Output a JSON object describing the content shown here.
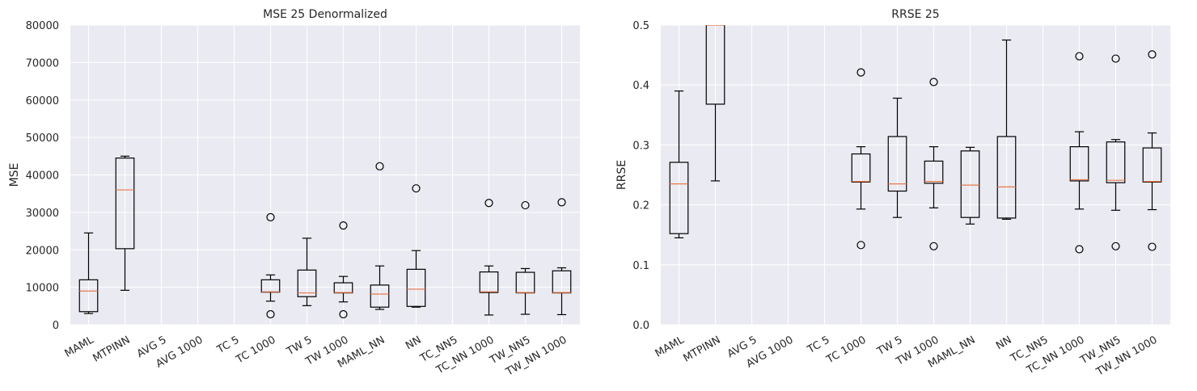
{
  "chart_data": [
    {
      "type": "box",
      "title": "MSE 25 Denormalized",
      "xlabel": "",
      "ylabel": "MSE",
      "ylim": [
        0,
        80000
      ],
      "yticks": [
        0,
        10000,
        20000,
        30000,
        40000,
        50000,
        60000,
        70000,
        80000
      ],
      "ytick_labels": [
        "0",
        "10000",
        "20000",
        "30000",
        "40000",
        "50000",
        "60000",
        "70000",
        "80000"
      ],
      "grid": true,
      "categories": [
        "MAML",
        "MTPINN",
        "AVG 5",
        "AVG 1000",
        "TC 5",
        "TC 1000",
        "TW 5",
        "TW 1000",
        "MAML_NN",
        "NN",
        "TC_NN5",
        "TC_NN 1000",
        "TW_NN5",
        "TW_NN 1000"
      ],
      "boxes": [
        {
          "whislo": 3000,
          "q1": 3500,
          "med": 9000,
          "q3": 12000,
          "whishi": 24500,
          "fliers": []
        },
        {
          "whislo": 9200,
          "q1": 20300,
          "med": 36000,
          "q3": 44500,
          "whishi": 45000,
          "fliers": []
        },
        null,
        null,
        null,
        {
          "whislo": 6300,
          "q1": 8700,
          "med": 8800,
          "q3": 12000,
          "whishi": 13300,
          "fliers": [
            28700,
            2800
          ]
        },
        {
          "whislo": 5100,
          "q1": 7500,
          "med": 8500,
          "q3": 14600,
          "whishi": 23100,
          "fliers": []
        },
        {
          "whislo": 6100,
          "q1": 8500,
          "med": 8600,
          "q3": 11200,
          "whishi": 12900,
          "fliers": [
            26500,
            2800
          ]
        },
        {
          "whislo": 4100,
          "q1": 4700,
          "med": 8200,
          "q3": 10600,
          "whishi": 15700,
          "fliers": [
            42300
          ]
        },
        {
          "whislo": 4700,
          "q1": 4900,
          "med": 9500,
          "q3": 14800,
          "whishi": 19800,
          "fliers": [
            36400
          ]
        },
        null,
        {
          "whislo": 2600,
          "q1": 8600,
          "med": 8800,
          "q3": 14100,
          "whishi": 15700,
          "fliers": [
            32500
          ]
        },
        {
          "whislo": 2800,
          "q1": 8500,
          "med": 8600,
          "q3": 14000,
          "whishi": 15000,
          "fliers": [
            31900
          ]
        },
        {
          "whislo": 2700,
          "q1": 8500,
          "med": 8600,
          "q3": 14400,
          "whishi": 15200,
          "fliers": [
            32700
          ]
        }
      ]
    },
    {
      "type": "box",
      "title": "RRSE 25",
      "xlabel": "",
      "ylabel": "RRSE",
      "ylim": [
        0,
        0.5
      ],
      "yticks": [
        0,
        0.1,
        0.2,
        0.3,
        0.4,
        0.5
      ],
      "ytick_labels": [
        "0.0",
        "0.1",
        "0.2",
        "0.3",
        "0.4",
        "0.5"
      ],
      "grid": true,
      "categories": [
        "MAML",
        "MTPINN",
        "AVG 5",
        "AVG 1000",
        "TC 5",
        "TC 1000",
        "TW 5",
        "TW 1000",
        "MAML_NN",
        "NN",
        "TC_NN5",
        "TC_NN 1000",
        "TW_NN5",
        "TW_NN 1000"
      ],
      "boxes": [
        {
          "whislo": 0.145,
          "q1": 0.152,
          "med": 0.235,
          "q3": 0.271,
          "whishi": 0.39,
          "fliers": []
        },
        {
          "whislo": 0.24,
          "q1": 0.368,
          "med": 0.5,
          "q3": 0.52,
          "whishi": 0.55,
          "fliers": []
        },
        null,
        null,
        null,
        {
          "whislo": 0.193,
          "q1": 0.238,
          "med": 0.239,
          "q3": 0.285,
          "whishi": 0.297,
          "fliers": [
            0.421,
            0.133
          ]
        },
        {
          "whislo": 0.179,
          "q1": 0.223,
          "med": 0.235,
          "q3": 0.314,
          "whishi": 0.378,
          "fliers": []
        },
        {
          "whislo": 0.195,
          "q1": 0.236,
          "med": 0.239,
          "q3": 0.273,
          "whishi": 0.297,
          "fliers": [
            0.405,
            0.131
          ]
        },
        {
          "whislo": 0.168,
          "q1": 0.179,
          "med": 0.233,
          "q3": 0.29,
          "whishi": 0.296,
          "fliers": []
        },
        {
          "whislo": 0.176,
          "q1": 0.178,
          "med": 0.23,
          "q3": 0.314,
          "whishi": 0.475,
          "fliers": []
        },
        null,
        {
          "whislo": 0.193,
          "q1": 0.24,
          "med": 0.242,
          "q3": 0.297,
          "whishi": 0.322,
          "fliers": [
            0.448,
            0.126
          ]
        },
        {
          "whislo": 0.191,
          "q1": 0.237,
          "med": 0.241,
          "q3": 0.305,
          "whishi": 0.309,
          "fliers": [
            0.444,
            0.131
          ]
        },
        {
          "whislo": 0.192,
          "q1": 0.238,
          "med": 0.239,
          "q3": 0.295,
          "whishi": 0.32,
          "fliers": [
            0.451,
            0.13
          ]
        }
      ]
    }
  ],
  "colors": {
    "axes_background": "#eaeaf2",
    "grid": "#ffffff",
    "box": "#000000",
    "median": "#e8794a",
    "text": "#262626"
  }
}
